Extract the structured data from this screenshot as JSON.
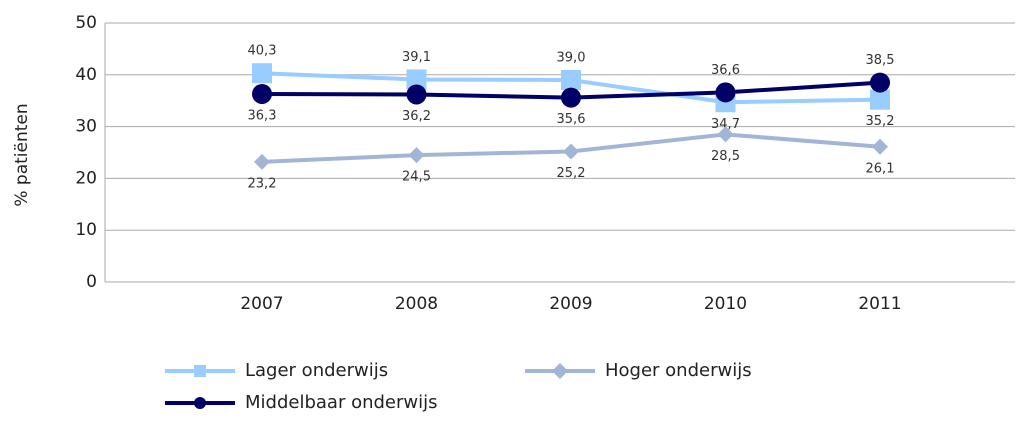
{
  "chart_data": {
    "type": "line",
    "y_label": "% patiënten",
    "categories": [
      "2007",
      "2008",
      "2009",
      "2010",
      "2011"
    ],
    "series": [
      {
        "name": "Lager onderwijs",
        "color": "#99ccff",
        "marker": "square",
        "values": [
          40.3,
          39.1,
          39.0,
          34.7,
          35.2
        ],
        "value_labels": [
          "40,3",
          "39,1",
          "39,0",
          "34,7",
          "35,2"
        ]
      },
      {
        "name": "Hoger onderwijs",
        "color": "#a3b5d6",
        "marker": "diamond",
        "values": [
          23.2,
          24.5,
          25.2,
          28.5,
          26.1
        ],
        "value_labels": [
          "23,2",
          "24,5",
          "25,2",
          "28,5",
          "26,1"
        ]
      },
      {
        "name": "Middelbaar onderwijs",
        "color": "#000066",
        "marker": "circle",
        "values": [
          36.3,
          36.2,
          35.6,
          36.6,
          38.5
        ],
        "value_labels": [
          "36,3",
          "36,2",
          "35,6",
          "36,6",
          "38,5"
        ]
      }
    ],
    "ylim": [
      0,
      50
    ],
    "yticks": [
      0,
      10,
      20,
      30,
      40,
      50
    ],
    "grid": true
  }
}
